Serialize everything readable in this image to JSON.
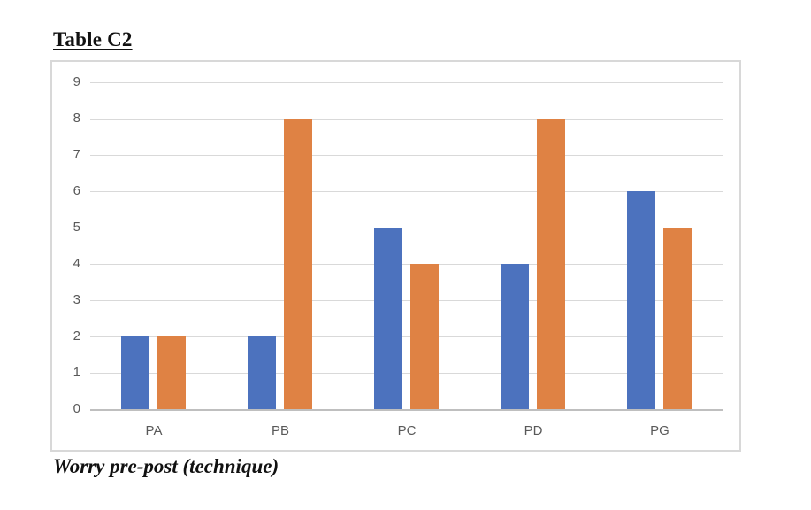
{
  "figure": {
    "title": "Table C2",
    "caption": "Worry pre-post (technique)"
  },
  "chart_data": {
    "type": "bar",
    "title": "",
    "xlabel": "",
    "ylabel": "",
    "categories": [
      "PA",
      "PB",
      "PC",
      "PD",
      "PG"
    ],
    "series": [
      {
        "name": "series1",
        "color": "#4c72be",
        "values": [
          2,
          2,
          5,
          4,
          6
        ]
      },
      {
        "name": "series2",
        "color": "#df8244",
        "values": [
          2,
          8,
          4,
          8,
          5
        ]
      }
    ],
    "ylim": [
      0,
      9
    ],
    "yticks": [
      "0",
      "1",
      "2",
      "3",
      "4",
      "5",
      "6",
      "7",
      "8",
      "9"
    ],
    "grid": true,
    "gridline_color": "#d9d9d9",
    "axis_line_color": "#bfbfbf",
    "tick_label_color": "#595959",
    "legend": false
  }
}
